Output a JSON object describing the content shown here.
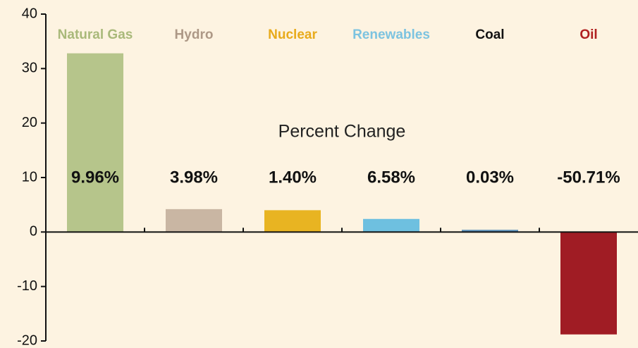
{
  "chart_data": {
    "type": "bar",
    "categories": [
      "Natural Gas",
      "Hydro",
      "Nuclear",
      "Renewables",
      "Coal",
      "Oil"
    ],
    "values": [
      32.8,
      4.2,
      4.0,
      2.4,
      0.4,
      -18.8
    ],
    "colors": [
      "#b6c58b",
      "#c9b6a3",
      "#e8b422",
      "#6ec0e0",
      "#5a8fb8",
      "#a01c24"
    ],
    "label_colors": [
      "#a9b97a",
      "#ad9886",
      "#e8ab1c",
      "#7cc3e0",
      "#111111",
      "#b02020"
    ],
    "annotation": "Percent Change",
    "percent_labels": [
      "9.96%",
      "3.98%",
      "1.40%",
      "6.58%",
      "0.03%",
      "-50.71%"
    ],
    "ylim": [
      -20,
      40
    ],
    "yticks": [
      -20,
      -10,
      0,
      10,
      20,
      30,
      40
    ]
  }
}
